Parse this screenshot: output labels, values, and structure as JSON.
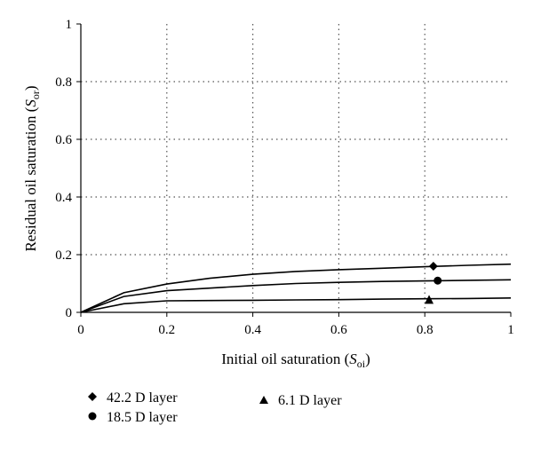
{
  "chart_data": {
    "type": "line",
    "xlabel": {
      "main": "Initial oil saturation (",
      "sym": "S",
      "sub": "oi",
      "end": ")"
    },
    "ylabel": {
      "main": "Residual oil saturation (",
      "sym": "S",
      "sub": "or",
      "end": ")"
    },
    "xlim": [
      0,
      1
    ],
    "ylim": [
      0,
      1
    ],
    "x_ticks": [
      0,
      0.2,
      0.4,
      0.6,
      0.8,
      1
    ],
    "y_ticks": [
      0,
      0.2,
      0.4,
      0.6,
      0.8,
      1
    ],
    "x_tick_labels": [
      "0",
      "0.2",
      "0.4",
      "0.6",
      "0.8",
      "1"
    ],
    "y_tick_labels": [
      "0",
      "0.2",
      "0.4",
      "0.6",
      "0.8",
      "1"
    ],
    "grid": true,
    "legend_position": "bottom",
    "curves": [
      {
        "x": [
          0,
          0.1,
          0.2,
          0.3,
          0.4,
          0.5,
          0.6,
          0.7,
          0.8,
          0.9,
          1.0
        ],
        "y": [
          0,
          0.068,
          0.098,
          0.118,
          0.132,
          0.142,
          0.148,
          0.153,
          0.158,
          0.163,
          0.167
        ]
      },
      {
        "x": [
          0,
          0.1,
          0.2,
          0.3,
          0.4,
          0.5,
          0.6,
          0.7,
          0.8,
          0.9,
          1.0
        ],
        "y": [
          0,
          0.055,
          0.075,
          0.084,
          0.093,
          0.1,
          0.104,
          0.107,
          0.109,
          0.111,
          0.113
        ]
      },
      {
        "x": [
          0,
          0.1,
          0.2,
          0.3,
          0.4,
          0.5,
          0.6,
          0.7,
          0.8,
          0.9,
          1.0
        ],
        "y": [
          0,
          0.03,
          0.04,
          0.041,
          0.042,
          0.043,
          0.044,
          0.046,
          0.047,
          0.048,
          0.05
        ]
      }
    ],
    "series": [
      {
        "name": "42.2 D layer",
        "marker": "diamond",
        "x": [
          0.82
        ],
        "y": [
          0.16
        ]
      },
      {
        "name": "18.5 D layer",
        "marker": "circle",
        "x": [
          0.83
        ],
        "y": [
          0.11
        ]
      },
      {
        "name": "6.1 D layer",
        "marker": "triangle",
        "x": [
          0.81
        ],
        "y": [
          0.045
        ]
      }
    ]
  }
}
